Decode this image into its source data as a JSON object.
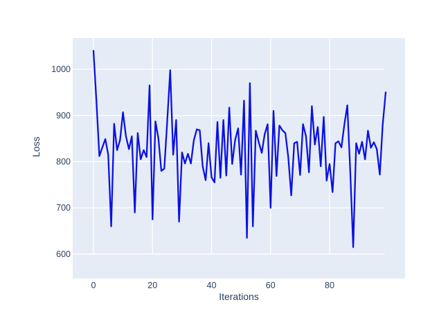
{
  "window": {
    "background_color": "#ffffff"
  },
  "chart_data": {
    "type": "line",
    "title": "",
    "xlabel": "Iterations",
    "ylabel": "Loss",
    "x_start": 0,
    "x_step": 1,
    "x_range": [
      0,
      99
    ],
    "values": [
      1040,
      930,
      812,
      831,
      849,
      815,
      660,
      882,
      825,
      847,
      907,
      855,
      827,
      855,
      690,
      862,
      805,
      825,
      810,
      965,
      675,
      887,
      850,
      780,
      785,
      890,
      998,
      815,
      890,
      670,
      820,
      796,
      817,
      796,
      846,
      870,
      868,
      790,
      760,
      840,
      766,
      755,
      886,
      765,
      890,
      770,
      917,
      795,
      847,
      872,
      772,
      932,
      635,
      970,
      660,
      867,
      842,
      819,
      859,
      881,
      700,
      910,
      769,
      878,
      868,
      862,
      810,
      727,
      840,
      843,
      771,
      881,
      855,
      777,
      920,
      837,
      875,
      790,
      897,
      759,
      795,
      734,
      840,
      844,
      831,
      880,
      922,
      780,
      615,
      840,
      817,
      843,
      805,
      867,
      830,
      842,
      827,
      772,
      880,
      950
    ],
    "xticks": [
      0,
      20,
      40,
      60,
      80
    ],
    "yticks": [
      600,
      700,
      800,
      900,
      1000
    ],
    "xlim": [
      -7,
      105.5
    ],
    "ylim": [
      548,
      1068
    ],
    "grid": true,
    "legend": false,
    "line_color": "#0b11e3",
    "plot_bgcolor": "#e5ecf6",
    "grid_color": "#ffffff",
    "text_color": "#2a3f5f"
  }
}
